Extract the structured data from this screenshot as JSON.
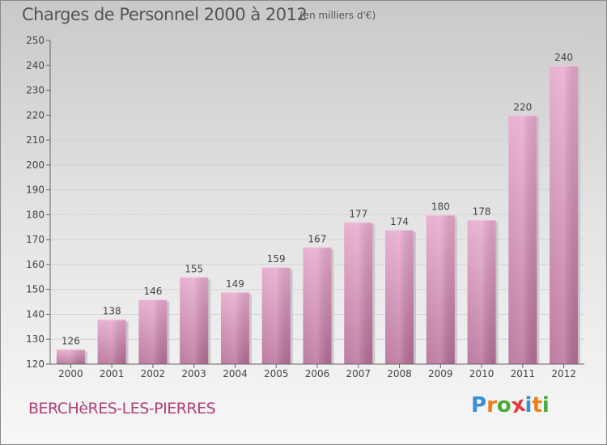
{
  "header": {
    "title": "Charges de Personnel 2000 à 2012",
    "subtitle": "(en milliers d'€)"
  },
  "footer": {
    "commune": "BERCHèRES-LES-PIERRES",
    "logo_text": "Proxiti"
  },
  "colors": {
    "bar_light": "#e6a8cc",
    "bar_dark": "#b56d97",
    "bar_shadow": "#c9c9c9",
    "commune_text": "#b0407a",
    "logo_letters": [
      "#3a8fd6",
      "#f07d1a",
      "#4aaa3a",
      "#e23c3c",
      "#3a8fd6",
      "#f07d1a",
      "#4aaa3a"
    ]
  },
  "chart_data": {
    "type": "bar",
    "title": "Charges de Personnel 2000 à 2012",
    "subtitle": "(en milliers d'€)",
    "categories": [
      "2000",
      "2001",
      "2002",
      "2003",
      "2004",
      "2005",
      "2006",
      "2007",
      "2008",
      "2009",
      "2010",
      "2011",
      "2012"
    ],
    "values": [
      126,
      138,
      146,
      155,
      149,
      159,
      167,
      177,
      174,
      180,
      178,
      220,
      240
    ],
    "ylim": [
      120,
      250
    ],
    "yticks": [
      120,
      130,
      140,
      150,
      160,
      170,
      180,
      190,
      200,
      210,
      220,
      230,
      240,
      250
    ],
    "grid": true,
    "data_labels": true
  }
}
